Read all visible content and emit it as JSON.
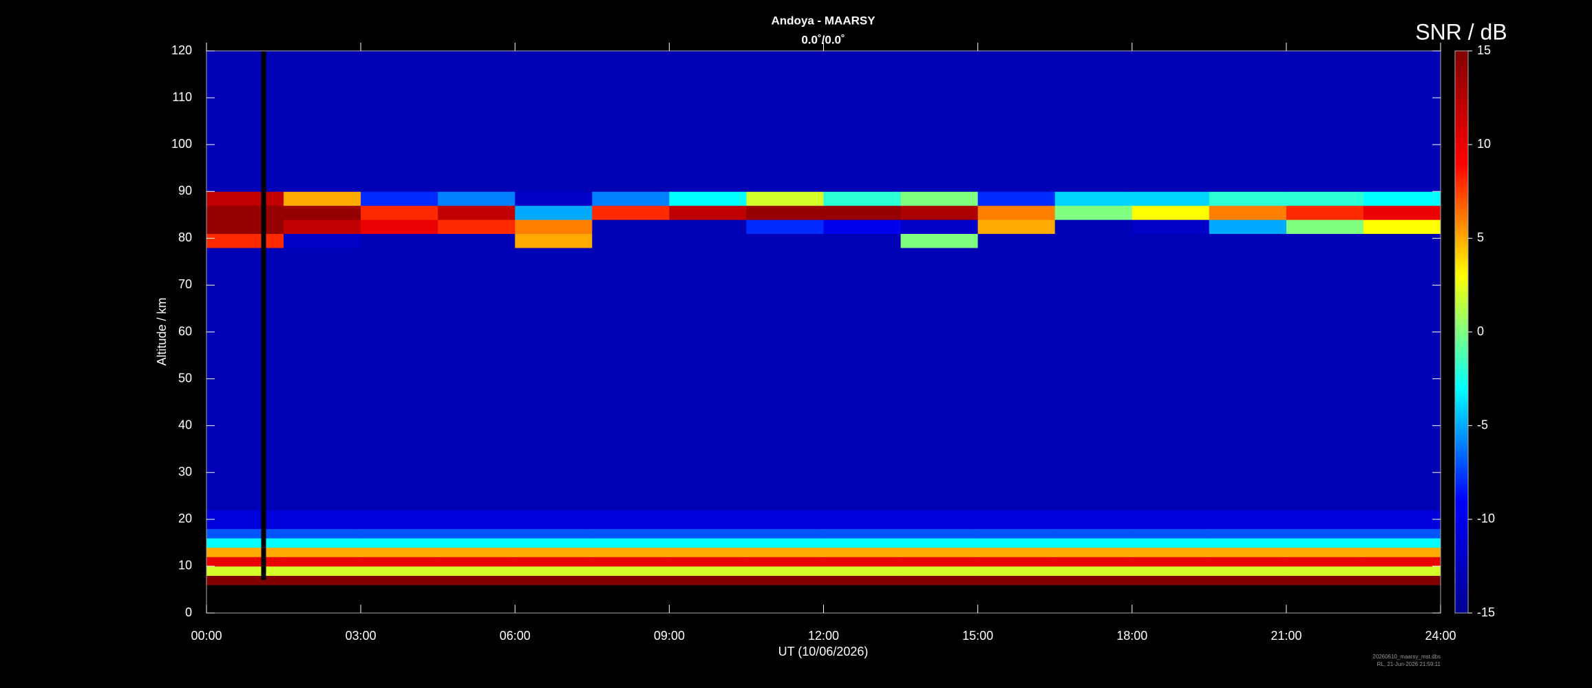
{
  "chart_data": {
    "type": "heatmap",
    "title": "Andoya - MAARSY",
    "subtitle": "0.0˚/0.0˚",
    "x_label": "UT (10/06/2026)",
    "y_label": "Altitude / km",
    "colorbar_label": "SNR / dB",
    "footer": [
      "20260610_maarsy_mst.dbs",
      "RL, 21-Jun-2026 21:59:11"
    ],
    "xlim": [
      0,
      24
    ],
    "xticks": [
      {
        "value": 0,
        "label": "00:00"
      },
      {
        "value": 3,
        "label": "03:00"
      },
      {
        "value": 6,
        "label": "06:00"
      },
      {
        "value": 9,
        "label": "09:00"
      },
      {
        "value": 12,
        "label": "12:00"
      },
      {
        "value": 15,
        "label": "15:00"
      },
      {
        "value": 18,
        "label": "18:00"
      },
      {
        "value": 21,
        "label": "21:00"
      },
      {
        "value": 24,
        "label": "24:00"
      }
    ],
    "ylim": [
      0,
      120
    ],
    "yticks": [
      0,
      10,
      20,
      30,
      40,
      50,
      60,
      70,
      80,
      90,
      100,
      110,
      120
    ],
    "clim": [
      -15,
      15
    ],
    "cticks": [
      -15,
      -10,
      -5,
      0,
      5,
      10,
      15
    ],
    "colormap": [
      "#00008f",
      "#0000ff",
      "#00ffff",
      "#ffff00",
      "#ff0000",
      "#800000"
    ],
    "x_bins": [
      0,
      1.5,
      3,
      4.5,
      6,
      7.5,
      9,
      10.5,
      12,
      13.5,
      15,
      16.5,
      18,
      19.5,
      21,
      22.5,
      24
    ],
    "y_bins": [
      6,
      8,
      10,
      12,
      14,
      16,
      18,
      22,
      78,
      81,
      84,
      87,
      90,
      120
    ],
    "z": [
      [
        15,
        15,
        15,
        15,
        15,
        15,
        15,
        15,
        15,
        15,
        15,
        15,
        15,
        15,
        15,
        15
      ],
      [
        2,
        2,
        2,
        2,
        2,
        2,
        2,
        2,
        2,
        2,
        2,
        2,
        2,
        2,
        2,
        2
      ],
      [
        10,
        10,
        10,
        10,
        10,
        10,
        10,
        10,
        10,
        10,
        10,
        10,
        10,
        10,
        10,
        10
      ],
      [
        5,
        5,
        5,
        5,
        5,
        5,
        5,
        5,
        5,
        5,
        5,
        5,
        5,
        5,
        5,
        5
      ],
      [
        -3,
        -3,
        -3,
        -3,
        -3,
        -3,
        -3,
        -3,
        -3,
        -3,
        -3,
        -3,
        -3,
        -3,
        -3,
        -3
      ],
      [
        -7,
        -7,
        -7,
        -7,
        -7,
        -7,
        -7,
        -7,
        -7,
        -7,
        -7,
        -7,
        -7,
        -7,
        -7,
        -7
      ],
      [
        -11,
        -11,
        -11,
        -11,
        -11,
        -11,
        -11,
        -11,
        -11,
        -11,
        -11,
        -11,
        -11,
        -11,
        -11,
        -11
      ],
      [
        -13,
        -13,
        -13,
        -13,
        -13,
        -13,
        -13,
        -13,
        -13,
        -13,
        -13,
        -13,
        -13,
        -13,
        -13,
        -13
      ],
      [
        8,
        -12,
        -13,
        -13,
        5,
        -13,
        -13,
        -13,
        -13,
        0,
        -13,
        -13,
        -13,
        -13,
        -13,
        -13
      ],
      [
        14,
        12,
        10,
        8,
        6,
        -13,
        -13,
        -8,
        -10,
        -12,
        5,
        -13,
        -12,
        -5,
        0,
        3
      ],
      [
        14,
        14,
        8,
        12,
        -5,
        8,
        12,
        14,
        14,
        13,
        6,
        0,
        3,
        6,
        8,
        10
      ],
      [
        12,
        5,
        -8,
        -6,
        -12,
        -6,
        -3,
        2,
        -2,
        0,
        -8,
        -4,
        -4,
        -2,
        -2,
        -3
      ],
      [
        -13,
        -13,
        -13,
        -13,
        -13,
        -13,
        -13,
        -13,
        -13,
        -13,
        -13,
        -13,
        -13,
        -13,
        -13,
        -13
      ]
    ]
  }
}
